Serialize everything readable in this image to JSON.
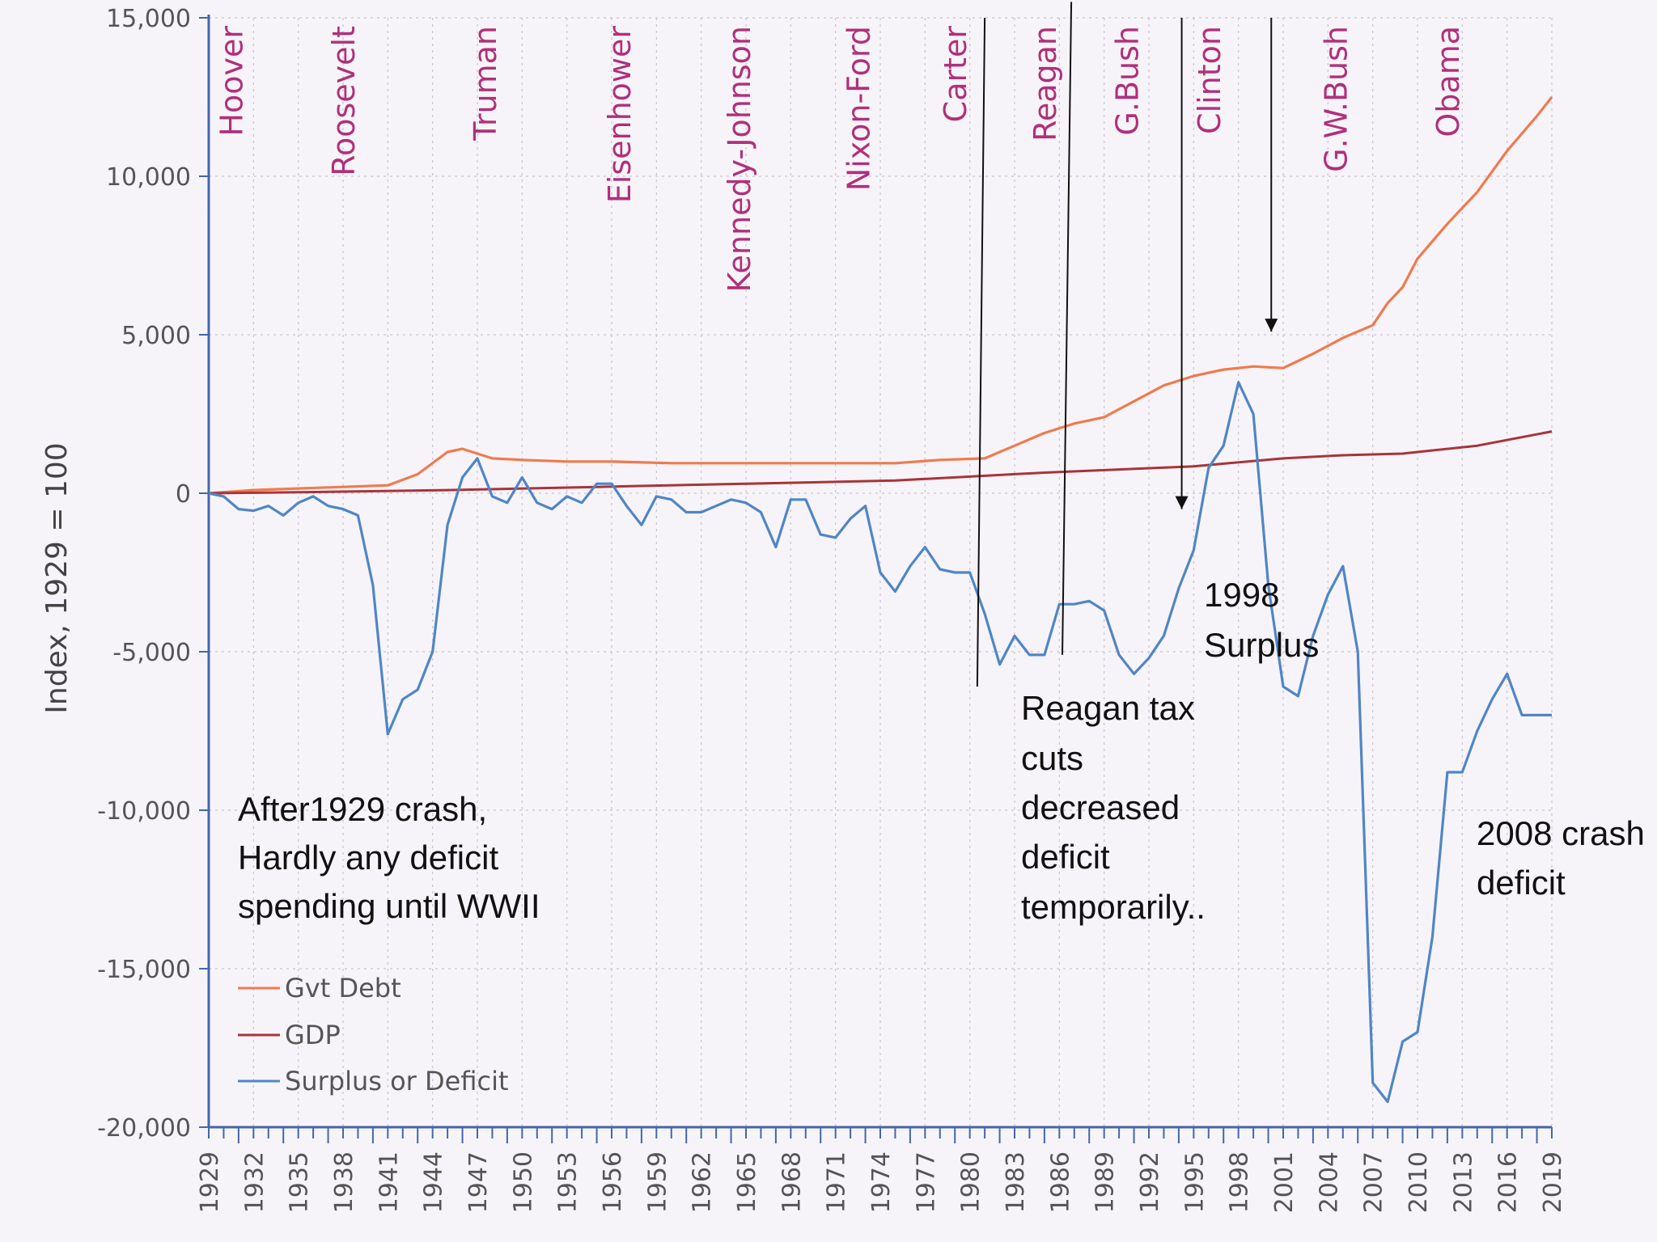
{
  "chart_data": {
    "type": "line",
    "title": "",
    "xlabel": "",
    "ylabel": "Index, 1929 = 100",
    "xlim": [
      1929,
      2019
    ],
    "ylim": [
      -20000,
      15000
    ],
    "y_ticks": [
      "15,000",
      "10,000",
      "5,000",
      "0",
      "-5,000",
      "-10,000",
      "-15,000",
      "-20,000"
    ],
    "y_tick_values": [
      15000,
      10000,
      5000,
      0,
      -5000,
      -10000,
      -15000,
      -20000
    ],
    "x_ticks": [
      "1929",
      "1932",
      "1935",
      "1938",
      "1941",
      "1944",
      "1947",
      "1950",
      "1953",
      "1956",
      "1959",
      "1962",
      "1965",
      "1968",
      "1971",
      "1974",
      "1977",
      "1980",
      "1983",
      "1986",
      "1989",
      "1992",
      "1995",
      "1998",
      "2001",
      "2004",
      "2007",
      "2010",
      "2013",
      "2016",
      "2019"
    ],
    "grid": true,
    "legend_position": "bottom-left",
    "administrations": [
      {
        "name": "Hoover",
        "x": 1930.5,
        "start": 1929
      },
      {
        "name": "Roosevelt",
        "x": 1938,
        "start": 1933
      },
      {
        "name": "Truman",
        "x": 1947.5,
        "start": 1945
      },
      {
        "name": "Eisenhower",
        "x": 1956.5,
        "start": 1953
      },
      {
        "name": "Kennedy-Johnson",
        "x": 1964.5,
        "start": 1961
      },
      {
        "name": "Nixon-Ford",
        "x": 1972.5,
        "start": 1969
      },
      {
        "name": "Carter",
        "x": 1979,
        "start": 1977
      },
      {
        "name": "Reagan",
        "x": 1985,
        "start": 1981
      },
      {
        "name": "G.Bush",
        "x": 1990.5,
        "start": 1989
      },
      {
        "name": "Clinton",
        "x": 1996,
        "start": 1993
      },
      {
        "name": "G.W.Bush",
        "x": 2004.5,
        "start": 2001
      },
      {
        "name": "Obama",
        "x": 2012,
        "start": 2009
      }
    ],
    "series": [
      {
        "name": "Gvt Debt",
        "color": "#f07a4e",
        "x": [
          1929,
          1932,
          1935,
          1938,
          1941,
          1943,
          1945,
          1946,
          1948,
          1950,
          1953,
          1956,
          1960,
          1965,
          1970,
          1975,
          1978,
          1981,
          1983,
          1985,
          1987,
          1989,
          1991,
          1993,
          1995,
          1997,
          1999,
          2001,
          2003,
          2005,
          2007,
          2008,
          2009,
          2010,
          2012,
          2014,
          2016,
          2018,
          2019
        ],
        "values": [
          0,
          100,
          150,
          200,
          250,
          600,
          1300,
          1400,
          1100,
          1050,
          1000,
          1000,
          950,
          950,
          950,
          950,
          1050,
          1100,
          1500,
          1900,
          2200,
          2400,
          2900,
          3400,
          3700,
          3900,
          4000,
          3950,
          4400,
          4900,
          5300,
          6000,
          6500,
          7400,
          8500,
          9500,
          10800,
          11900,
          12500
        ]
      },
      {
        "name": "GDP",
        "color": "#a8343a",
        "x": [
          1929,
          1935,
          1945,
          1955,
          1965,
          1975,
          1985,
          1995,
          2001,
          2005,
          2009,
          2010,
          2014,
          2019
        ],
        "values": [
          0,
          30,
          100,
          200,
          300,
          400,
          650,
          850,
          1100,
          1200,
          1250,
          1300,
          1500,
          1950
        ]
      },
      {
        "name": "Surplus or Deficit",
        "color": "#4f86c6",
        "x": [
          1929,
          1930,
          1931,
          1932,
          1933,
          1934,
          1935,
          1936,
          1937,
          1938,
          1939,
          1940,
          1941,
          1942,
          1943,
          1944,
          1945,
          1946,
          1947,
          1948,
          1949,
          1950,
          1951,
          1952,
          1953,
          1954,
          1955,
          1956,
          1957,
          1958,
          1959,
          1960,
          1961,
          1962,
          1963,
          1964,
          1965,
          1966,
          1967,
          1968,
          1969,
          1970,
          1971,
          1972,
          1973,
          1974,
          1975,
          1976,
          1977,
          1978,
          1979,
          1980,
          1981,
          1982,
          1983,
          1984,
          1985,
          1986,
          1987,
          1988,
          1989,
          1990,
          1991,
          1992,
          1993,
          1994,
          1995,
          1996,
          1997,
          1998,
          1999,
          2000,
          2001,
          2002,
          2003,
          2004,
          2005,
          2006,
          2007,
          2008,
          2009,
          2010,
          2011,
          2012,
          2013,
          2014,
          2015,
          2016,
          2017,
          2018,
          2019
        ],
        "values": [
          0,
          -100,
          -500,
          -550,
          -400,
          -700,
          -300,
          -100,
          -400,
          -500,
          -700,
          -2900,
          -7600,
          -6500,
          -6200,
          -5000,
          -1000,
          500,
          1100,
          -100,
          -300,
          500,
          -300,
          -500,
          -100,
          -300,
          300,
          300,
          -400,
          -1000,
          -100,
          -200,
          -600,
          -600,
          -400,
          -200,
          -300,
          -600,
          -1700,
          -200,
          -200,
          -1300,
          -1400,
          -800,
          -400,
          -2500,
          -3100,
          -2300,
          -1700,
          -2400,
          -2500,
          -2500,
          -3800,
          -5400,
          -4500,
          -5100,
          -5100,
          -3500,
          -3500,
          -3400,
          -3700,
          -5100,
          -5700,
          -5200,
          -4500,
          -3000,
          -1800,
          800,
          1500,
          3500,
          2500,
          -2900,
          -6100,
          -6400,
          -4500,
          -3200,
          -2300,
          -5000,
          -18600,
          -19200,
          -17300,
          -17000,
          -14000,
          -8800,
          -8800,
          -7500,
          -6500,
          -5700,
          -7000,
          -7000,
          -7000
        ]
      }
    ],
    "legend": [
      "Gvt Debt",
      "GDP",
      "Surplus or Deficit"
    ],
    "annotations": {
      "crash_1929": [
        "After1929 crash,",
        "Hardly any deficit",
        "spending until WWII"
      ],
      "reagan": [
        "Reagan tax",
        "cuts",
        "decreased",
        "deficit",
        "temporarily.."
      ],
      "surplus_1998": [
        "1998",
        "Surplus"
      ],
      "crash_2008": [
        "2008 crash",
        "deficit"
      ]
    }
  }
}
